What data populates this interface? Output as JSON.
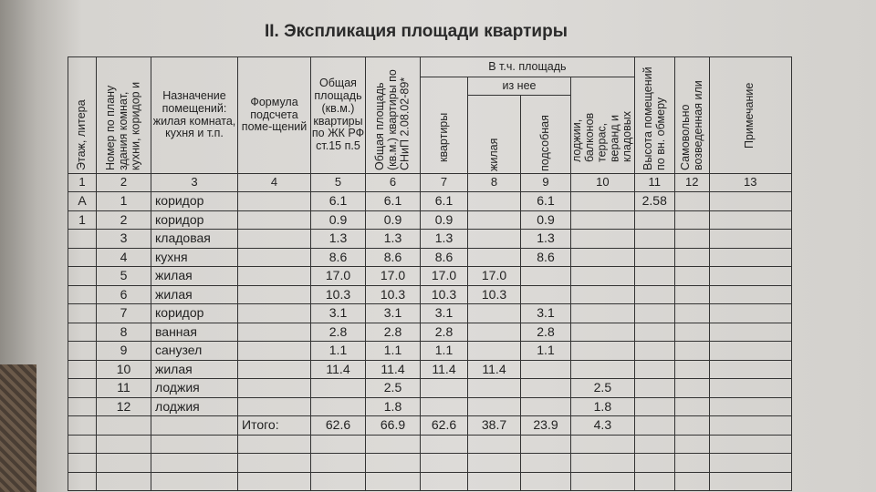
{
  "title": "II. Экспликация площади квартиры",
  "headers": {
    "c1": "Этаж, литера",
    "c2": "Номер по плану здания комнат, кухни, коридор и",
    "c3": "Назначение помещений: жилая комната, кухня и т.п.",
    "c4": "Формула подсчета поме-щений",
    "c5": "Общая площадь (кв.м.) квартиры по ЖК РФ ст.15 п.5",
    "c6": "Общая площадь (кв.м.) квартиры по СНиП 2.08.02-89*",
    "group": "В т.ч. площадь",
    "subgroup": "из нее",
    "c7": "квартиры",
    "c8": "жилая",
    "c9": "подсобная",
    "c10": "лоджии, балконов террас, веранд и кладовых",
    "c11": "Высота помещений по вн. обмеру",
    "c12": "Самовольно возведенная или",
    "c13": "Примечание"
  },
  "column_numbers": [
    "1",
    "2",
    "3",
    "4",
    "5",
    "6",
    "7",
    "8",
    "9",
    "10",
    "11",
    "12",
    "13"
  ],
  "rows": [
    [
      "А",
      "1",
      "коридор",
      "",
      "6.1",
      "6.1",
      "6.1",
      "",
      "6.1",
      "",
      "2.58",
      "",
      ""
    ],
    [
      "1",
      "2",
      "коридор",
      "",
      "0.9",
      "0.9",
      "0.9",
      "",
      "0.9",
      "",
      "",
      "",
      ""
    ],
    [
      "",
      "3",
      "кладовая",
      "",
      "1.3",
      "1.3",
      "1.3",
      "",
      "1.3",
      "",
      "",
      "",
      ""
    ],
    [
      "",
      "4",
      "кухня",
      "",
      "8.6",
      "8.6",
      "8.6",
      "",
      "8.6",
      "",
      "",
      "",
      ""
    ],
    [
      "",
      "5",
      "жилая",
      "",
      "17.0",
      "17.0",
      "17.0",
      "17.0",
      "",
      "",
      "",
      "",
      ""
    ],
    [
      "",
      "6",
      "жилая",
      "",
      "10.3",
      "10.3",
      "10.3",
      "10.3",
      "",
      "",
      "",
      "",
      ""
    ],
    [
      "",
      "7",
      "коридор",
      "",
      "3.1",
      "3.1",
      "3.1",
      "",
      "3.1",
      "",
      "",
      "",
      ""
    ],
    [
      "",
      "8",
      "ванная",
      "",
      "2.8",
      "2.8",
      "2.8",
      "",
      "2.8",
      "",
      "",
      "",
      ""
    ],
    [
      "",
      "9",
      "санузел",
      "",
      "1.1",
      "1.1",
      "1.1",
      "",
      "1.1",
      "",
      "",
      "",
      ""
    ],
    [
      "",
      "10",
      "жилая",
      "",
      "11.4",
      "11.4",
      "11.4",
      "11.4",
      "",
      "",
      "",
      "",
      ""
    ],
    [
      "",
      "11",
      "лоджия",
      "",
      "",
      "2.5",
      "",
      "",
      "",
      "2.5",
      "",
      "",
      ""
    ],
    [
      "",
      "12",
      "лоджия",
      "",
      "",
      "1.8",
      "",
      "",
      "",
      "1.8",
      "",
      "",
      ""
    ]
  ],
  "total": {
    "label": "Итого:",
    "c5": "62.6",
    "c6": "66.9",
    "c7": "62.6",
    "c8": "38.7",
    "c9": "23.9",
    "c10": "4.3"
  }
}
